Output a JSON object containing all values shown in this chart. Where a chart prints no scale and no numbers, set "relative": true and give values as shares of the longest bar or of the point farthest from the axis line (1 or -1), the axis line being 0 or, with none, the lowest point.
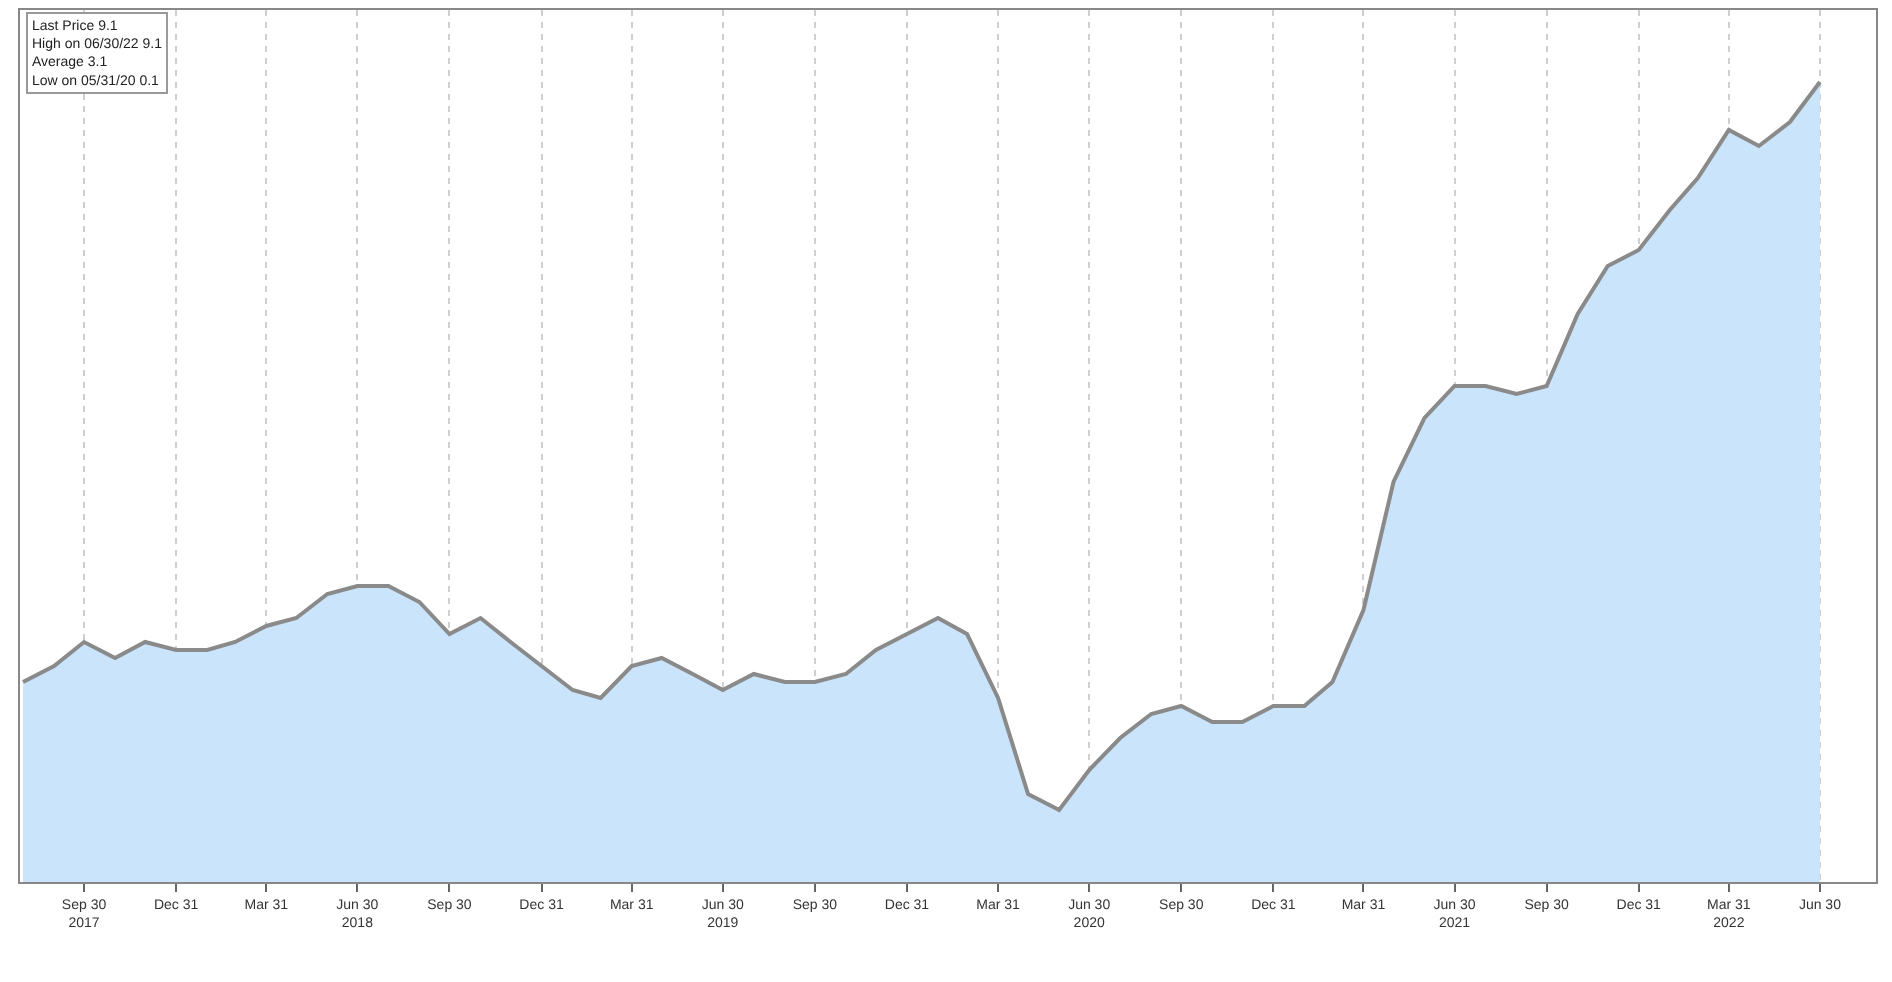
{
  "chart_data": {
    "type": "area",
    "x": [
      "2017-07-31",
      "2017-08-31",
      "2017-09-30",
      "2017-10-31",
      "2017-11-30",
      "2017-12-31",
      "2018-01-31",
      "2018-02-28",
      "2018-03-31",
      "2018-04-30",
      "2018-05-31",
      "2018-06-30",
      "2018-07-31",
      "2018-08-31",
      "2018-09-30",
      "2018-10-31",
      "2018-11-30",
      "2018-12-31",
      "2019-01-31",
      "2019-02-28",
      "2019-03-31",
      "2019-04-30",
      "2019-05-31",
      "2019-06-30",
      "2019-07-31",
      "2019-08-31",
      "2019-09-30",
      "2019-10-31",
      "2019-11-30",
      "2019-12-31",
      "2020-01-31",
      "2020-02-29",
      "2020-03-31",
      "2020-04-30",
      "2020-05-31",
      "2020-06-30",
      "2020-07-31",
      "2020-08-31",
      "2020-09-30",
      "2020-10-31",
      "2020-11-30",
      "2020-12-31",
      "2021-01-31",
      "2021-02-28",
      "2021-03-31",
      "2021-04-30",
      "2021-05-31",
      "2021-06-30",
      "2021-07-31",
      "2021-08-31",
      "2021-09-30",
      "2021-10-31",
      "2021-11-30",
      "2021-12-31",
      "2022-01-31",
      "2022-02-28",
      "2022-03-31",
      "2022-04-30",
      "2022-05-31",
      "2022-06-30"
    ],
    "relative": true,
    "series": [
      {
        "color": "#c9e4fb",
        "values": [
          0.25,
          0.27,
          0.3,
          0.28,
          0.3,
          0.29,
          0.29,
          0.3,
          0.32,
          0.33,
          0.36,
          0.37,
          0.37,
          0.35,
          0.31,
          0.33,
          0.3,
          0.27,
          0.24,
          0.23,
          0.27,
          0.28,
          0.26,
          0.24,
          0.26,
          0.25,
          0.25,
          0.26,
          0.29,
          0.31,
          0.33,
          0.31,
          0.23,
          0.11,
          0.09,
          0.14,
          0.18,
          0.21,
          0.22,
          0.2,
          0.2,
          0.22,
          0.22,
          0.25,
          0.34,
          0.5,
          0.58,
          0.62,
          0.62,
          0.61,
          0.62,
          0.71,
          0.77,
          0.79,
          0.84,
          0.88,
          0.94,
          0.92,
          0.95,
          1
        ]
      }
    ],
    "xlim": [
      "2017-07-28",
      "2022-08-25"
    ],
    "xticks": [
      {
        "value": "2017-09-30",
        "label": "Sep 30\n2017"
      },
      {
        "value": "2017-12-31",
        "label": "Dec 31"
      },
      {
        "value": "2018-03-31",
        "label": "Mar 31"
      },
      {
        "value": "2018-06-30",
        "label": "Jun 30\n2018"
      },
      {
        "value": "2018-09-30",
        "label": "Sep 30"
      },
      {
        "value": "2018-12-31",
        "label": "Dec 31"
      },
      {
        "value": "2019-03-31",
        "label": "Mar 31"
      },
      {
        "value": "2019-06-30",
        "label": "Jun 30\n2019"
      },
      {
        "value": "2019-09-30",
        "label": "Sep 30"
      },
      {
        "value": "2019-12-31",
        "label": "Dec 31"
      },
      {
        "value": "2020-03-31",
        "label": "Mar 31"
      },
      {
        "value": "2020-06-30",
        "label": "Jun 30\n2020"
      },
      {
        "value": "2020-09-30",
        "label": "Sep 30"
      },
      {
        "value": "2020-12-31",
        "label": "Dec 31"
      },
      {
        "value": "2021-03-31",
        "label": "Mar 31"
      },
      {
        "value": "2021-06-30",
        "label": "Jun 30\n2021"
      },
      {
        "value": "2021-09-30",
        "label": "Sep 30"
      },
      {
        "value": "2021-12-31",
        "label": "Dec 31"
      },
      {
        "value": "2022-03-31",
        "label": "Mar 31\n2022"
      },
      {
        "value": "2022-06-30",
        "label": "Jun 30"
      }
    ],
    "tick_labels": "x",
    "grid": "x",
    "line_style": "solid",
    "annotations": [
      "Last Price 9.1",
      "High on 06/30/22 9.1",
      "Average 3.1",
      "Low on 05/31/20 0.1"
    ]
  }
}
